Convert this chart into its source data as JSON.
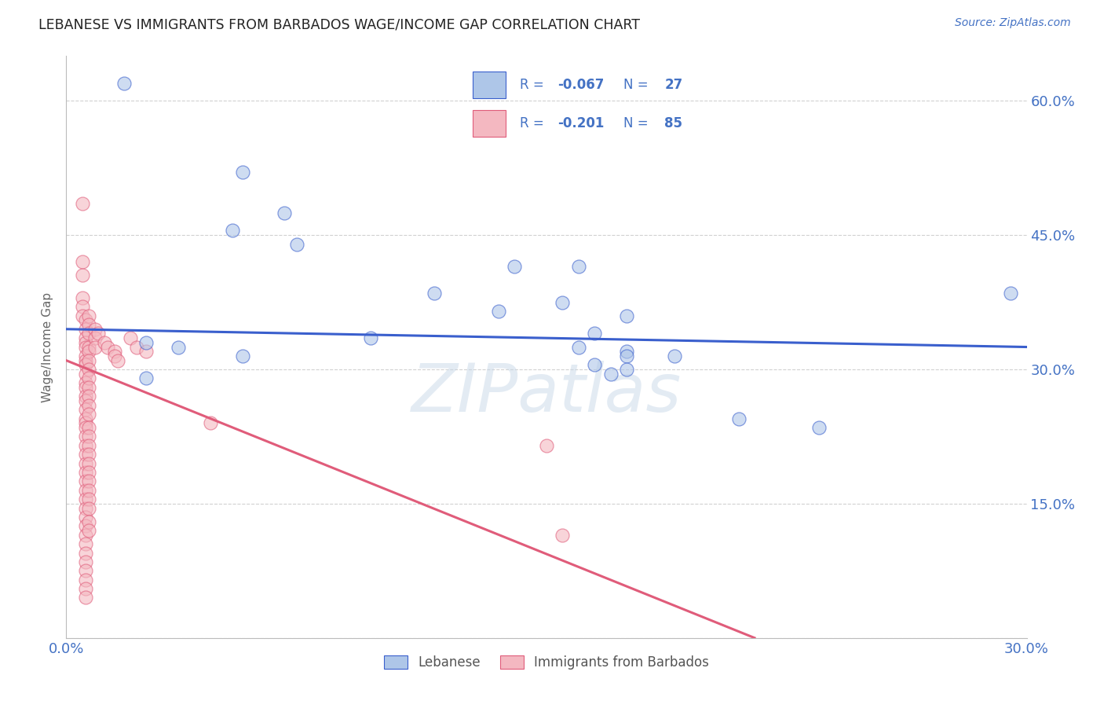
{
  "title": "LEBANESE VS IMMIGRANTS FROM BARBADOS WAGE/INCOME GAP CORRELATION CHART",
  "source": "Source: ZipAtlas.com",
  "ylabel": "Wage/Income Gap",
  "watermark": "ZIPatlas",
  "legend_label_blue": "Lebanese",
  "legend_label_pink": "Immigrants from Barbados",
  "blue_color": "#aec6e8",
  "pink_color": "#f4b8c1",
  "blue_line_color": "#3a5fcd",
  "pink_line_color": "#e05c7a",
  "text_color": "#4472c4",
  "blue_scatter": [
    [
      0.018,
      0.62
    ],
    [
      0.055,
      0.52
    ],
    [
      0.068,
      0.475
    ],
    [
      0.052,
      0.455
    ],
    [
      0.072,
      0.44
    ],
    [
      0.14,
      0.415
    ],
    [
      0.16,
      0.415
    ],
    [
      0.115,
      0.385
    ],
    [
      0.155,
      0.375
    ],
    [
      0.135,
      0.365
    ],
    [
      0.175,
      0.36
    ],
    [
      0.165,
      0.34
    ],
    [
      0.095,
      0.335
    ],
    [
      0.025,
      0.33
    ],
    [
      0.035,
      0.325
    ],
    [
      0.055,
      0.315
    ],
    [
      0.16,
      0.325
    ],
    [
      0.175,
      0.32
    ],
    [
      0.175,
      0.315
    ],
    [
      0.19,
      0.315
    ],
    [
      0.165,
      0.305
    ],
    [
      0.175,
      0.3
    ],
    [
      0.17,
      0.295
    ],
    [
      0.025,
      0.29
    ],
    [
      0.21,
      0.245
    ],
    [
      0.235,
      0.235
    ],
    [
      0.295,
      0.385
    ]
  ],
  "pink_scatter": [
    [
      0.005,
      0.485
    ],
    [
      0.005,
      0.42
    ],
    [
      0.005,
      0.405
    ],
    [
      0.005,
      0.38
    ],
    [
      0.005,
      0.37
    ],
    [
      0.005,
      0.36
    ],
    [
      0.006,
      0.355
    ],
    [
      0.006,
      0.345
    ],
    [
      0.006,
      0.335
    ],
    [
      0.006,
      0.33
    ],
    [
      0.006,
      0.325
    ],
    [
      0.006,
      0.315
    ],
    [
      0.006,
      0.31
    ],
    [
      0.006,
      0.305
    ],
    [
      0.006,
      0.295
    ],
    [
      0.006,
      0.285
    ],
    [
      0.006,
      0.28
    ],
    [
      0.006,
      0.27
    ],
    [
      0.006,
      0.265
    ],
    [
      0.006,
      0.255
    ],
    [
      0.006,
      0.245
    ],
    [
      0.006,
      0.24
    ],
    [
      0.006,
      0.235
    ],
    [
      0.006,
      0.225
    ],
    [
      0.006,
      0.215
    ],
    [
      0.006,
      0.205
    ],
    [
      0.006,
      0.195
    ],
    [
      0.006,
      0.185
    ],
    [
      0.006,
      0.175
    ],
    [
      0.006,
      0.165
    ],
    [
      0.006,
      0.155
    ],
    [
      0.006,
      0.145
    ],
    [
      0.006,
      0.135
    ],
    [
      0.006,
      0.125
    ],
    [
      0.006,
      0.115
    ],
    [
      0.006,
      0.105
    ],
    [
      0.006,
      0.095
    ],
    [
      0.006,
      0.085
    ],
    [
      0.006,
      0.075
    ],
    [
      0.006,
      0.065
    ],
    [
      0.006,
      0.055
    ],
    [
      0.006,
      0.045
    ],
    [
      0.007,
      0.36
    ],
    [
      0.007,
      0.35
    ],
    [
      0.007,
      0.34
    ],
    [
      0.007,
      0.325
    ],
    [
      0.007,
      0.32
    ],
    [
      0.007,
      0.31
    ],
    [
      0.007,
      0.3
    ],
    [
      0.007,
      0.29
    ],
    [
      0.007,
      0.28
    ],
    [
      0.007,
      0.27
    ],
    [
      0.007,
      0.26
    ],
    [
      0.007,
      0.25
    ],
    [
      0.007,
      0.235
    ],
    [
      0.007,
      0.225
    ],
    [
      0.007,
      0.215
    ],
    [
      0.007,
      0.205
    ],
    [
      0.007,
      0.195
    ],
    [
      0.007,
      0.185
    ],
    [
      0.007,
      0.175
    ],
    [
      0.007,
      0.165
    ],
    [
      0.007,
      0.155
    ],
    [
      0.007,
      0.145
    ],
    [
      0.007,
      0.13
    ],
    [
      0.007,
      0.12
    ],
    [
      0.009,
      0.345
    ],
    [
      0.009,
      0.335
    ],
    [
      0.009,
      0.325
    ],
    [
      0.01,
      0.34
    ],
    [
      0.012,
      0.33
    ],
    [
      0.013,
      0.325
    ],
    [
      0.015,
      0.32
    ],
    [
      0.015,
      0.315
    ],
    [
      0.016,
      0.31
    ],
    [
      0.02,
      0.335
    ],
    [
      0.022,
      0.325
    ],
    [
      0.025,
      0.32
    ],
    [
      0.045,
      0.24
    ],
    [
      0.15,
      0.215
    ],
    [
      0.155,
      0.115
    ]
  ],
  "xlim": [
    0.0,
    0.3
  ],
  "ylim": [
    0.0,
    0.65
  ],
  "grid_color": "#cccccc",
  "background_color": "#ffffff",
  "blue_trend": [
    0.0,
    0.345,
    0.3,
    0.325
  ],
  "pink_trend": [
    0.0,
    0.31,
    0.215,
    0.0
  ]
}
